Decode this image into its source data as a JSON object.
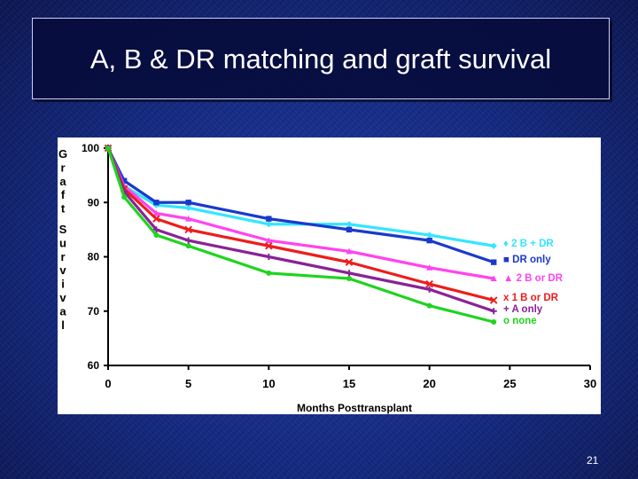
{
  "slide": {
    "title": "A, B & DR matching and graft survival",
    "page_number": "21"
  },
  "chart_data": {
    "type": "line",
    "title": "",
    "xlabel": "Months Posttransplant",
    "ylabel": "Graft Survival",
    "xlim": [
      0,
      30
    ],
    "ylim": [
      60,
      100
    ],
    "x_ticks": [
      0,
      5,
      10,
      15,
      20,
      25,
      30
    ],
    "y_ticks": [
      60,
      70,
      80,
      90,
      100
    ],
    "grid": false,
    "legend_position": "right",
    "series": [
      {
        "name": "2 B + DR",
        "marker": "diamond",
        "color": "#33e6ff",
        "x": [
          0,
          1,
          3,
          5,
          10,
          15,
          20,
          24
        ],
        "y": [
          100,
          93,
          89.5,
          89,
          86,
          86,
          84,
          82
        ]
      },
      {
        "name": "DR only",
        "marker": "square",
        "color": "#1a3acc",
        "x": [
          0,
          1,
          3,
          5,
          10,
          15,
          20,
          24
        ],
        "y": [
          100,
          94,
          90,
          90,
          87,
          85,
          83,
          79
        ]
      },
      {
        "name": "2 B or DR",
        "marker": "triangle",
        "color": "#ff44ee",
        "x": [
          0,
          1,
          3,
          5,
          10,
          15,
          20,
          24
        ],
        "y": [
          100,
          93,
          88,
          87,
          83,
          81,
          78,
          76
        ]
      },
      {
        "name": "1 B or DR",
        "marker": "x",
        "color": "#ee1c1c",
        "x": [
          0,
          1,
          3,
          5,
          10,
          15,
          20,
          24
        ],
        "y": [
          100,
          92.5,
          87,
          85,
          82,
          79,
          75,
          72
        ]
      },
      {
        "name": "A only",
        "marker": "plus",
        "color": "#8a2296",
        "x": [
          0,
          1,
          3,
          5,
          10,
          15,
          20,
          24
        ],
        "y": [
          100,
          92,
          85,
          83,
          80,
          77,
          74,
          70
        ]
      },
      {
        "name": "none",
        "marker": "circle",
        "color": "#1ed41e",
        "x": [
          0,
          1,
          3,
          5,
          10,
          15,
          20,
          24
        ],
        "y": [
          100,
          91,
          84,
          82,
          77,
          76,
          71,
          68
        ]
      }
    ],
    "legend_prefixes": [
      "♦",
      "■",
      "▲",
      "x",
      "+",
      "o"
    ]
  }
}
